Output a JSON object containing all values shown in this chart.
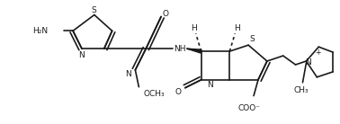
{
  "background_color": "#ffffff",
  "line_color": "#1a1a1a",
  "line_width": 1.2,
  "font_size": 6.5,
  "figsize": [
    3.78,
    1.38
  ],
  "dpi": 100,
  "xlim": [
    0,
    378
  ],
  "ylim": [
    0,
    138
  ]
}
